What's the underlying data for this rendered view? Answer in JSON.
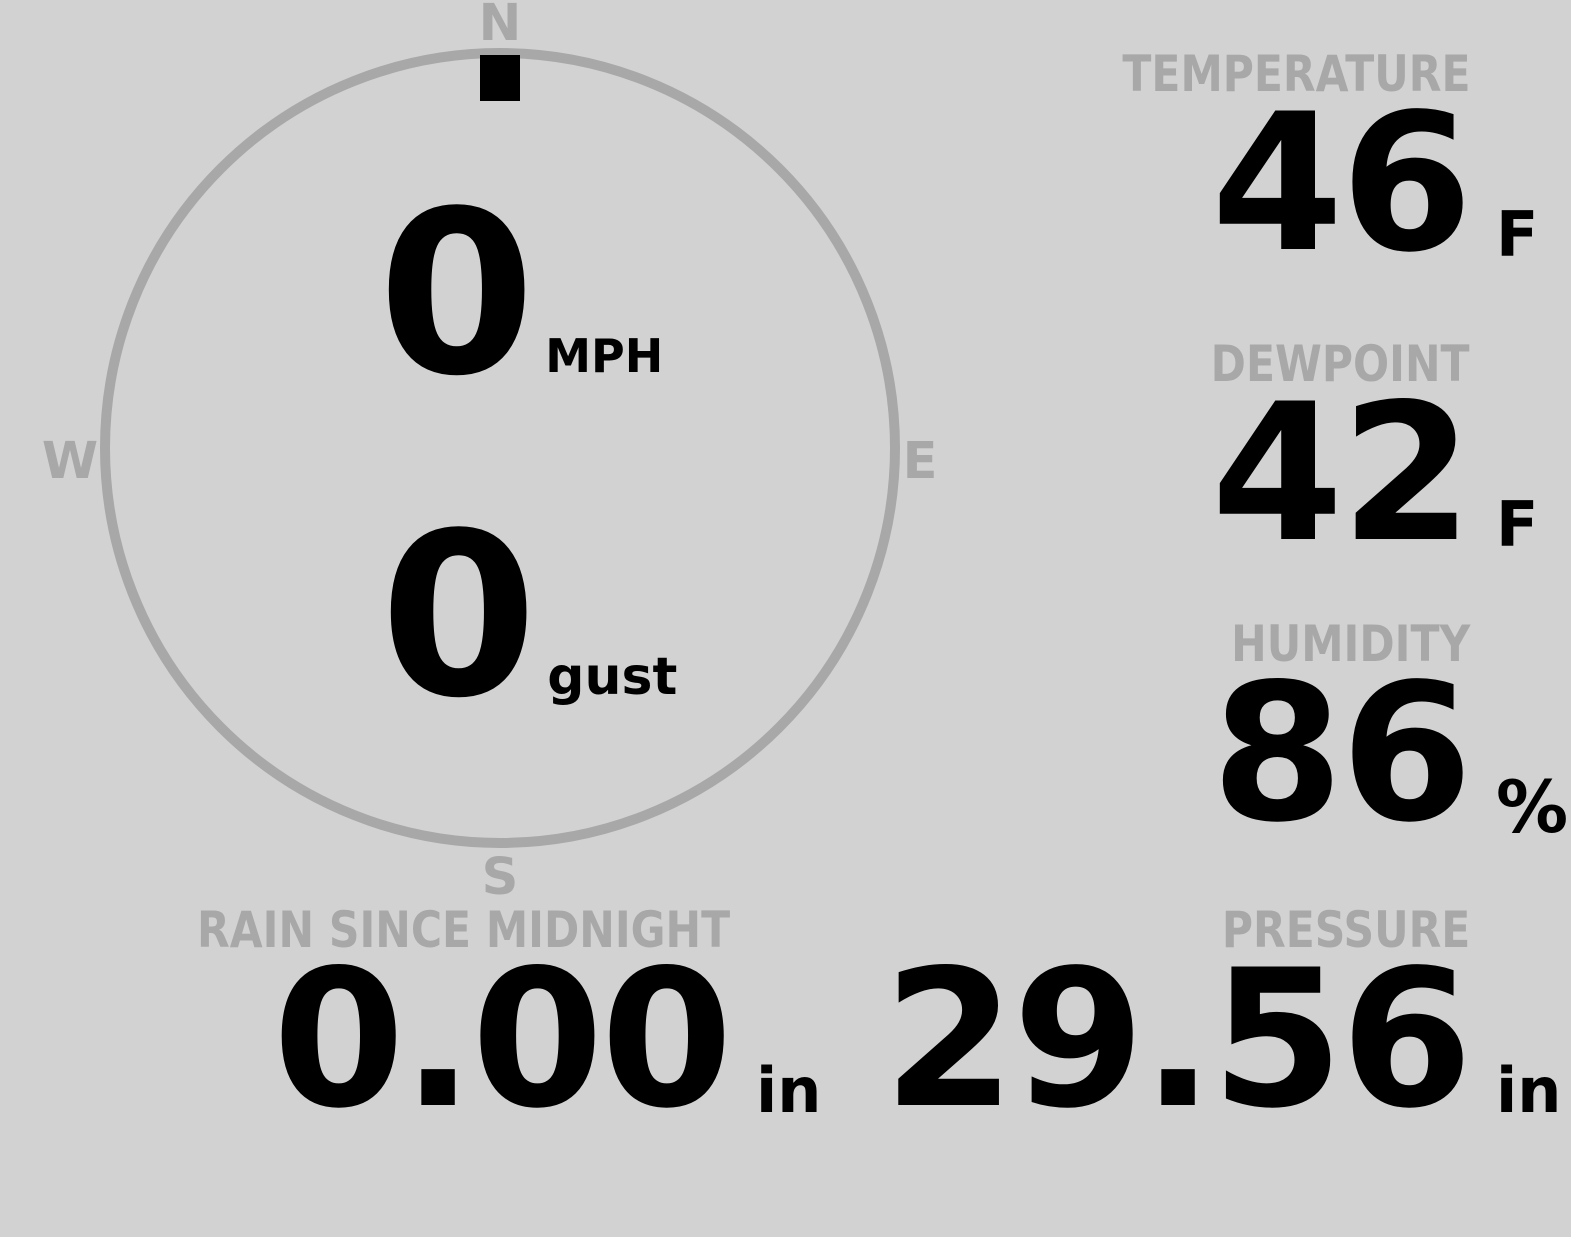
{
  "theme": {
    "background_color": "#d2d2d2",
    "muted_text_color": "#a8a8a8",
    "value_text_color": "#000000"
  },
  "wind": {
    "compass": {
      "north": "N",
      "east": "E",
      "south": "S",
      "west": "W"
    },
    "direction": "N",
    "direction_degrees": 0,
    "speed": {
      "value": "0",
      "unit": "MPH"
    },
    "gust": {
      "value": "0",
      "unit": "gust"
    }
  },
  "tiles": {
    "temperature": {
      "label": "TEMPERATURE",
      "value": "46",
      "unit": "F"
    },
    "dewpoint": {
      "label": "DEWPOINT",
      "value": "42",
      "unit": "F"
    },
    "humidity": {
      "label": "HUMIDITY",
      "value": "86",
      "unit": "%"
    },
    "rain": {
      "label": "RAIN SINCE MIDNIGHT",
      "value": "0.00",
      "unit": "in"
    },
    "pressure": {
      "label": "PRESSURE",
      "value": "29.56",
      "unit": "in"
    }
  }
}
